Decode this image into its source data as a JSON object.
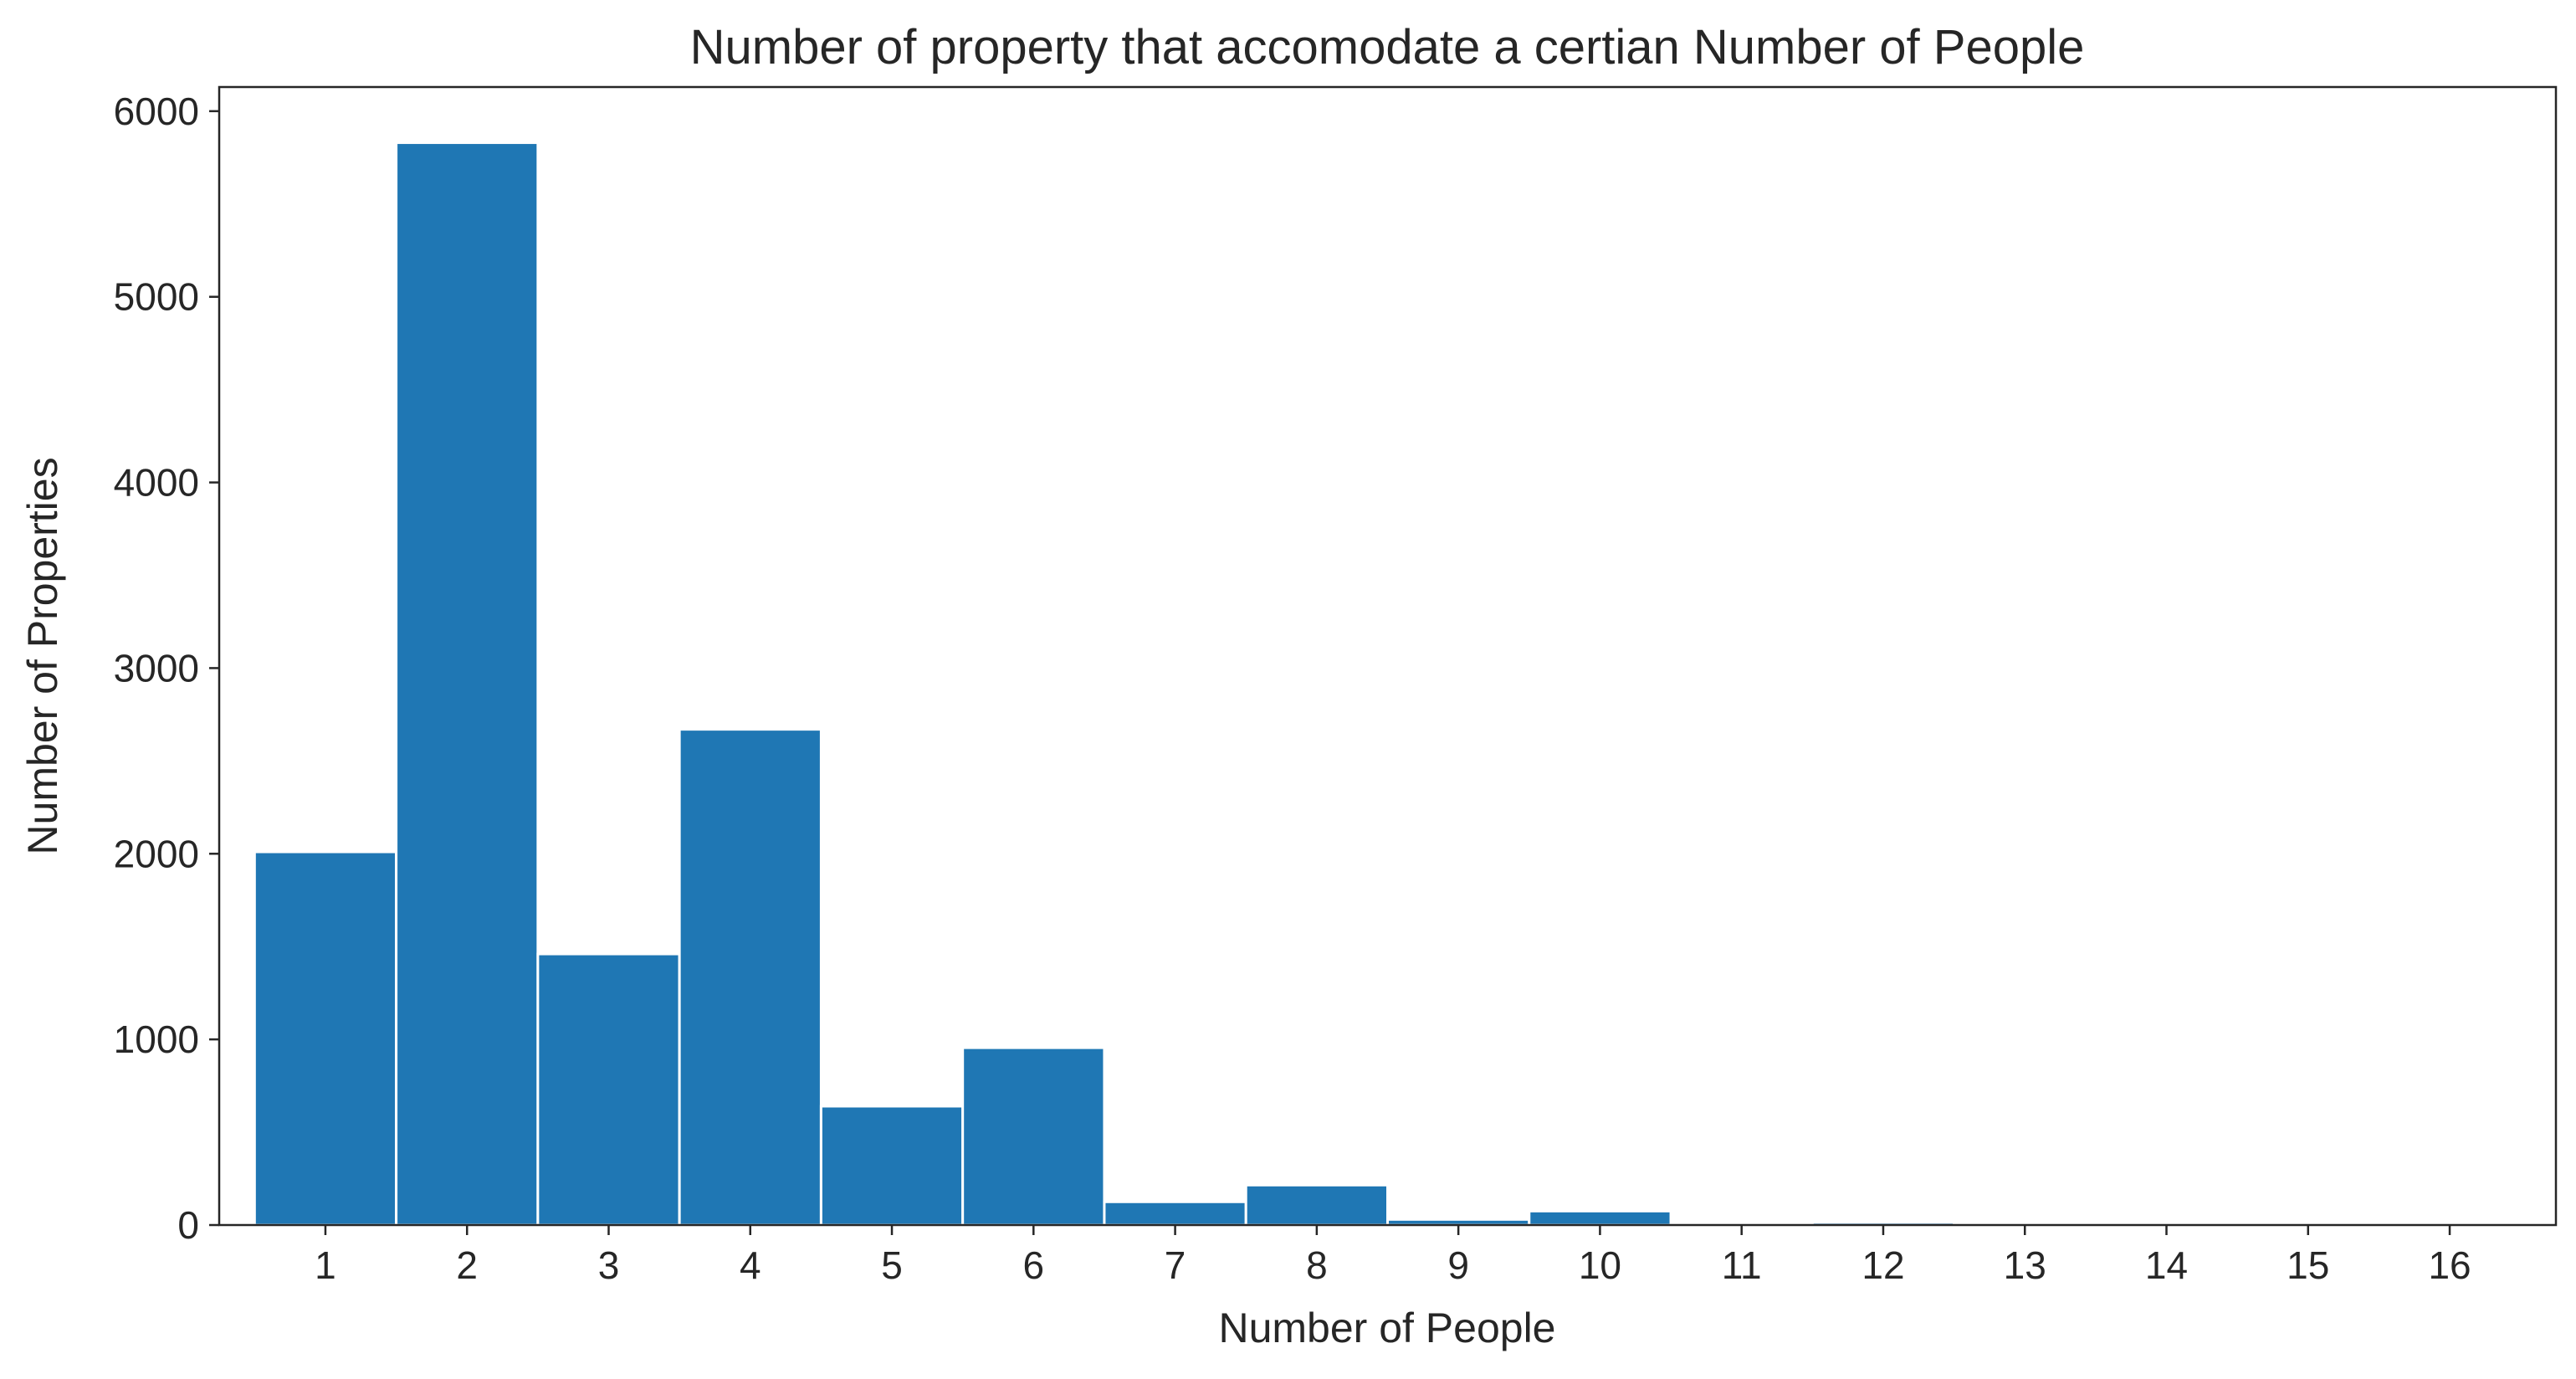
{
  "chart_data": {
    "type": "bar",
    "title": "Number of property that accomodate a certian Number of People",
    "xlabel": "Number of People",
    "ylabel": "Number of Properties",
    "categories": [
      "1",
      "2",
      "3",
      "4",
      "5",
      "6",
      "7",
      "8",
      "9",
      "10",
      "11",
      "12",
      "13",
      "14",
      "15",
      "16"
    ],
    "values": [
      2010,
      5830,
      1460,
      2670,
      640,
      955,
      125,
      215,
      30,
      75,
      2,
      15,
      2,
      3,
      3,
      10
    ],
    "ylim": [
      0,
      6130
    ],
    "yticks": [
      0,
      1000,
      2000,
      3000,
      4000,
      5000,
      6000
    ],
    "ytick_labels": [
      "0",
      "1000",
      "2000",
      "3000",
      "4000",
      "5000",
      "6000"
    ],
    "grid": false,
    "bar_color": "#1f77b4"
  }
}
